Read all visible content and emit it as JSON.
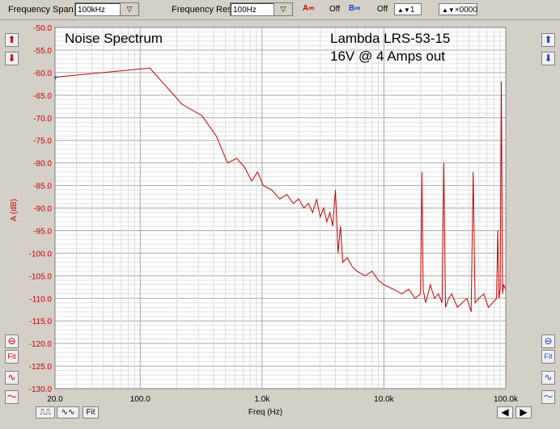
{
  "toolbar": {
    "span_label": "Frequency Span",
    "span_value": "100kHz",
    "res_label": "Frequency Res",
    "res_value": "100Hz",
    "a_label": "A",
    "a_state": "Off",
    "b_label": "B",
    "b_state": "Off",
    "avg_value": "1",
    "mult_value": "×0000"
  },
  "side": {
    "fit_label": "Fit"
  },
  "bottom": {
    "fit_label": "Fit"
  },
  "annotations": {
    "title": "Noise Spectrum",
    "model": "Lambda LRS-53-15",
    "condition": "16V @ 4 Amps out"
  },
  "colors": {
    "trace": "#cc0000",
    "grid": "#c0c0c0",
    "tick_label": "#cc0000"
  },
  "chart_data": {
    "type": "line",
    "xlabel": "Freq (Hz)",
    "ylabel": "A (dB)",
    "x_scale": "log",
    "xlim": [
      20,
      100000
    ],
    "ylim": [
      -130,
      -50
    ],
    "x_ticks": [
      "20.0",
      "100.0",
      "1.0k",
      "10.0k",
      "100.0k"
    ],
    "y_ticks": [
      "-50.0",
      "-55.0",
      "-60.0",
      "-65.0",
      "-70.0",
      "-75.0",
      "-80.0",
      "-85.0",
      "-90.0",
      "-95.0",
      "-100.0",
      "-105.0",
      "-110.0",
      "-115.0",
      "-120.0",
      "-125.0",
      "-130.0"
    ],
    "grid": true,
    "series": [
      {
        "x": [
          20,
          120,
          220,
          320,
          420,
          520,
          620,
          720,
          820,
          920,
          1020,
          1200,
          1400,
          1600,
          1800,
          2000,
          2200,
          2400,
          2600,
          2800,
          3000,
          3200,
          3400,
          3600,
          3800,
          4000,
          4200,
          4400,
          4600,
          5000,
          5500,
          6000,
          7000,
          8000,
          9000,
          10000,
          12000,
          14000,
          16000,
          18000,
          20000,
          20500,
          21000,
          22000,
          24000,
          26000,
          28000,
          30000,
          31000,
          32000,
          34000,
          36000,
          40000,
          44000,
          48000,
          52000,
          54000,
          56000,
          60000,
          66000,
          72000,
          78000,
          84000,
          86000,
          88000,
          90000,
          92000,
          94000,
          96000,
          100000
        ],
        "y": [
          -61,
          -59,
          -67,
          -69.5,
          -74,
          -80,
          -79,
          -81,
          -84,
          -82,
          -85,
          -86,
          -88,
          -87,
          -89,
          -88,
          -90,
          -89,
          -91,
          -88,
          -92,
          -90,
          -93,
          -91,
          -94,
          -86,
          -100,
          -94,
          -102,
          -101,
          -103,
          -104,
          -105,
          -104,
          -106,
          -107,
          -108,
          -109,
          -108,
          -110,
          -109,
          -82,
          -108,
          -111,
          -107,
          -110,
          -109,
          -111,
          -80,
          -112,
          -110,
          -109,
          -112,
          -111,
          -110,
          -113,
          -82,
          -111,
          -110,
          -109,
          -112,
          -111,
          -110,
          -95,
          -110,
          -108,
          -62,
          -109,
          -107,
          -108
        ]
      }
    ]
  }
}
